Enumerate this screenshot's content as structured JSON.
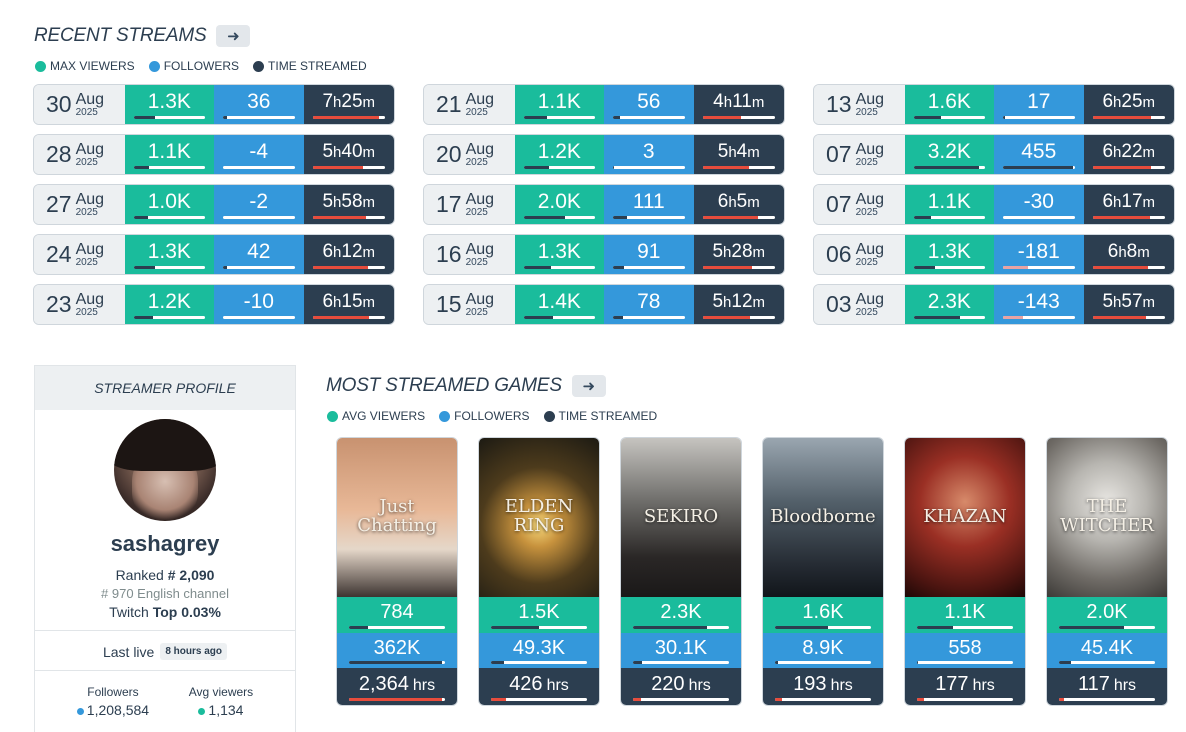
{
  "recent_streams": {
    "title": "RECENT STREAMS",
    "arrow_icon": "arrow-right-icon",
    "legend": [
      {
        "label": "MAX VIEWERS",
        "color": "#1abc9c"
      },
      {
        "label": "FOLLOWERS",
        "color": "#3498db"
      },
      {
        "label": "TIME STREAMED",
        "color": "#2c3e50"
      }
    ],
    "columns": [
      [
        {
          "day": "30",
          "month": "Aug",
          "year": "2025",
          "viewers": "1.3K",
          "followers": "36",
          "h": "7",
          "m": "25",
          "vbar": 0.3,
          "fbar": 0.05,
          "tbar": 0.92
        },
        {
          "day": "28",
          "month": "Aug",
          "year": "2025",
          "viewers": "1.1K",
          "followers": "-4",
          "h": "5",
          "m": "40",
          "vbar": 0.22,
          "fbar": 0.0,
          "tbar": 0.7
        },
        {
          "day": "27",
          "month": "Aug",
          "year": "2025",
          "viewers": "1.0K",
          "followers": "-2",
          "h": "5",
          "m": "58",
          "vbar": 0.2,
          "fbar": 0.0,
          "tbar": 0.74
        },
        {
          "day": "24",
          "month": "Aug",
          "year": "2025",
          "viewers": "1.3K",
          "followers": "42",
          "h": "6",
          "m": "12",
          "vbar": 0.3,
          "fbar": 0.06,
          "tbar": 0.77
        },
        {
          "day": "23",
          "month": "Aug",
          "year": "2025",
          "viewers": "1.2K",
          "followers": "-10",
          "h": "6",
          "m": "15",
          "vbar": 0.27,
          "fbar": 0.0,
          "tbar": 0.78
        }
      ],
      [
        {
          "day": "21",
          "month": "Aug",
          "year": "2025",
          "viewers": "1.1K",
          "followers": "56",
          "h": "4",
          "m": "11",
          "vbar": 0.33,
          "fbar": 0.1,
          "tbar": 0.53
        },
        {
          "day": "20",
          "month": "Aug",
          "year": "2025",
          "viewers": "1.2K",
          "followers": "3",
          "h": "5",
          "m": "4",
          "vbar": 0.35,
          "fbar": 0.01,
          "tbar": 0.64
        },
        {
          "day": "17",
          "month": "Aug",
          "year": "2025",
          "viewers": "2.0K",
          "followers": "111",
          "h": "6",
          "m": "5",
          "vbar": 0.58,
          "fbar": 0.2,
          "tbar": 0.76
        },
        {
          "day": "16",
          "month": "Aug",
          "year": "2025",
          "viewers": "1.3K",
          "followers": "91",
          "h": "5",
          "m": "28",
          "vbar": 0.38,
          "fbar": 0.16,
          "tbar": 0.68
        },
        {
          "day": "15",
          "month": "Aug",
          "year": "2025",
          "viewers": "1.4K",
          "followers": "78",
          "h": "5",
          "m": "12",
          "vbar": 0.41,
          "fbar": 0.14,
          "tbar": 0.65
        }
      ],
      [
        {
          "day": "13",
          "month": "Aug",
          "year": "2025",
          "viewers": "1.6K",
          "followers": "17",
          "h": "6",
          "m": "25",
          "vbar": 0.38,
          "fbar": 0.03,
          "tbar": 0.8
        },
        {
          "day": "07",
          "month": "Aug",
          "year": "2025",
          "viewers": "3.2K",
          "followers": "455",
          "h": "6",
          "m": "22",
          "vbar": 0.92,
          "fbar": 0.98,
          "tbar": 0.8
        },
        {
          "day": "07",
          "month": "Aug",
          "year": "2025",
          "viewers": "1.1K",
          "followers": "-30",
          "h": "6",
          "m": "17",
          "vbar": 0.25,
          "fbar": 0.0,
          "tbar": 0.79
        },
        {
          "day": "06",
          "month": "Aug",
          "year": "2025",
          "viewers": "1.3K",
          "followers": "-181",
          "h": "6",
          "m": "8",
          "vbar": 0.3,
          "fbar": -0.35,
          "tbar": 0.77
        },
        {
          "day": "03",
          "month": "Aug",
          "year": "2025",
          "viewers": "2.3K",
          "followers": "-143",
          "h": "5",
          "m": "57",
          "vbar": 0.65,
          "fbar": -0.28,
          "tbar": 0.74
        }
      ]
    ]
  },
  "profile": {
    "header": "STREAMER PROFILE",
    "username": "sashagrey",
    "ranked_prefix": "Ranked ",
    "ranked_value": "# 2,090",
    "language_rank": "# 970 English channel",
    "twitch_prefix": "Twitch ",
    "twitch_value": "Top 0.03%",
    "last_live_label": "Last live",
    "last_live_value": "8 hours ago",
    "followers_label": "Followers",
    "followers_value": "1,208,584",
    "avg_viewers_label": "Avg viewers",
    "avg_viewers_value": "1,134"
  },
  "games_section": {
    "title": "MOST STREAMED GAMES",
    "arrow_icon": "arrow-right-icon",
    "legend": [
      {
        "label": "AVG VIEWERS",
        "color": "#1abc9c"
      },
      {
        "label": "FOLLOWERS",
        "color": "#3498db"
      },
      {
        "label": "TIME STREAMED",
        "color": "#2c3e50"
      }
    ],
    "games": [
      {
        "cover_text": "Just Chatting",
        "avg_viewers": "784",
        "followers": "362K",
        "hours": "2,364",
        "unit": "hrs",
        "vbar": 0.2,
        "fbar": 0.97,
        "tbar": 0.97
      },
      {
        "cover_text": "ELDEN RING",
        "avg_viewers": "1.5K",
        "followers": "49.3K",
        "hours": "426",
        "unit": "hrs",
        "vbar": 0.5,
        "fbar": 0.14,
        "tbar": 0.16
      },
      {
        "cover_text": "SEKIRO",
        "avg_viewers": "2.3K",
        "followers": "30.1K",
        "hours": "220",
        "unit": "hrs",
        "vbar": 0.77,
        "fbar": 0.09,
        "tbar": 0.08
      },
      {
        "cover_text": "Bloodborne",
        "avg_viewers": "1.6K",
        "followers": "8.9K",
        "hours": "193",
        "unit": "hrs",
        "vbar": 0.55,
        "fbar": 0.03,
        "tbar": 0.07
      },
      {
        "cover_text": "KHAZAN",
        "avg_viewers": "1.1K",
        "followers": "558",
        "hours": "177",
        "unit": "hrs",
        "vbar": 0.38,
        "fbar": 0.01,
        "tbar": 0.07
      },
      {
        "cover_text": "THE WITCHER",
        "avg_viewers": "2.0K",
        "followers": "45.4K",
        "hours": "117",
        "unit": "hrs",
        "vbar": 0.68,
        "fbar": 0.13,
        "tbar": 0.05
      }
    ]
  }
}
